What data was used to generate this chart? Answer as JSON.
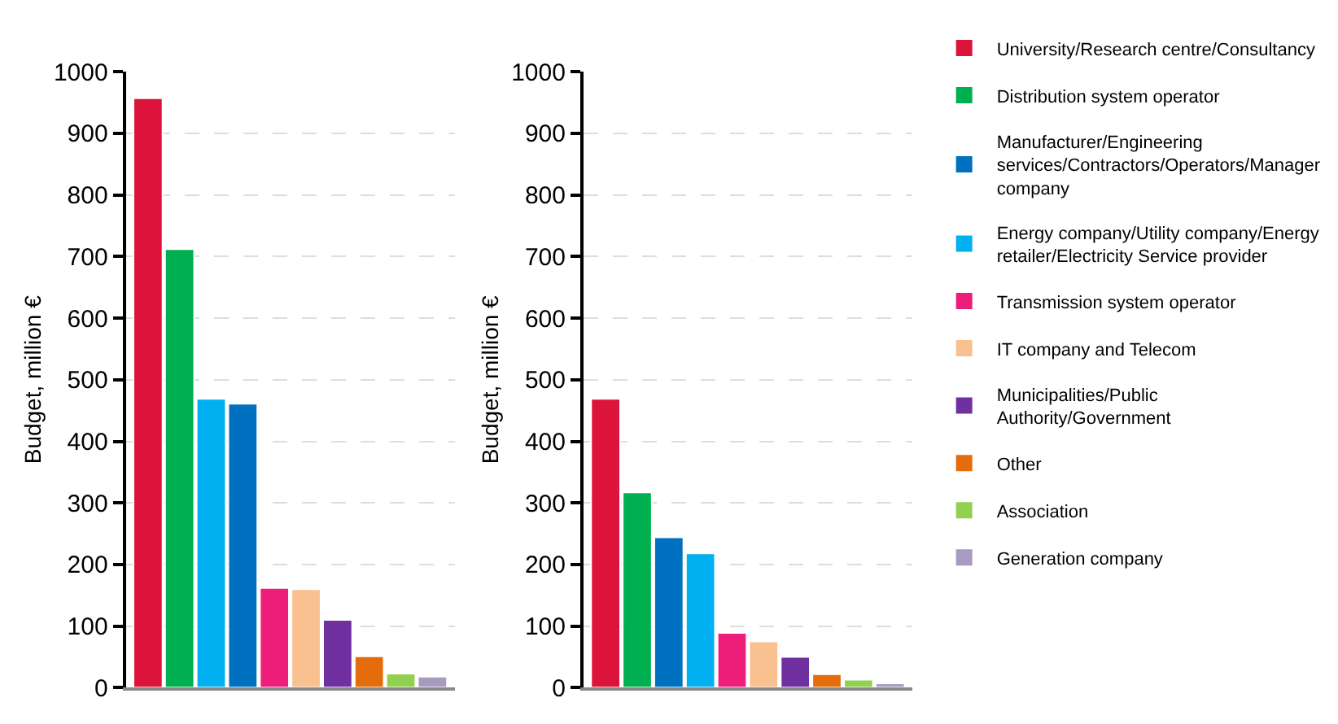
{
  "chart_data": [
    {
      "type": "bar",
      "ylabel": "Budget, million €",
      "categories": [
        null,
        null,
        null,
        null,
        null,
        null,
        null,
        null,
        null,
        null
      ],
      "ylim": [
        0,
        1000
      ],
      "yticks": [
        0,
        100,
        200,
        300,
        400,
        500,
        600,
        700,
        800,
        900,
        1000
      ],
      "grid": "y",
      "legend": false,
      "series": [
        {
          "color": "#dc143c",
          "values": [
            957,
            null,
            null,
            null,
            null,
            null,
            null,
            null,
            null,
            null
          ]
        },
        {
          "color": "#00b050",
          "values": [
            null,
            712,
            null,
            null,
            null,
            null,
            null,
            null,
            null,
            null
          ]
        },
        {
          "color": "#00b0f0",
          "values": [
            null,
            null,
            469,
            null,
            null,
            null,
            null,
            null,
            null,
            null
          ]
        },
        {
          "color": "#0070c0",
          "values": [
            null,
            null,
            null,
            461,
            null,
            null,
            null,
            null,
            null,
            null
          ]
        },
        {
          "color": "#ed1e79",
          "values": [
            null,
            null,
            null,
            null,
            162,
            null,
            null,
            null,
            null,
            null
          ]
        },
        {
          "color": "#f9c090",
          "values": [
            null,
            null,
            null,
            null,
            null,
            160,
            null,
            null,
            null,
            null
          ]
        },
        {
          "color": "#7030a0",
          "values": [
            null,
            null,
            null,
            null,
            null,
            null,
            110,
            null,
            null,
            null
          ]
        },
        {
          "color": "#e46c0a",
          "values": [
            null,
            null,
            null,
            null,
            null,
            null,
            null,
            51,
            null,
            null
          ]
        },
        {
          "color": "#92d050",
          "values": [
            null,
            null,
            null,
            null,
            null,
            null,
            null,
            null,
            23,
            null
          ]
        },
        {
          "color": "#a79cc0",
          "values": [
            null,
            null,
            null,
            null,
            null,
            null,
            null,
            null,
            null,
            18
          ]
        }
      ]
    },
    {
      "type": "bar",
      "ylabel": "Budget, million €",
      "categories": [
        null,
        null,
        null,
        null,
        null,
        null,
        null,
        null,
        null,
        null
      ],
      "ylim": [
        0,
        1000
      ],
      "yticks": [
        0,
        100,
        200,
        300,
        400,
        500,
        600,
        700,
        800,
        900,
        1000
      ],
      "grid": "y",
      "legend": "right",
      "series": [
        {
          "name": "University/Research centre/Consultancy",
          "color": "#dc143c",
          "values": [
            469,
            null,
            null,
            null,
            null,
            null,
            null,
            null,
            null,
            null
          ]
        },
        {
          "name": "Distribution system operator",
          "color": "#00b050",
          "values": [
            null,
            317,
            null,
            null,
            null,
            null,
            null,
            null,
            null,
            null
          ]
        },
        {
          "name": "Manufacturer/Engineering services/Contractors/Operators/Manager company",
          "color": "#0070c0",
          "values": [
            null,
            null,
            244,
            null,
            null,
            null,
            null,
            null,
            null,
            null
          ]
        },
        {
          "name": "Energy company/Utility company/Energy retailer/Electricity Service provider",
          "color": "#00b0f0",
          "values": [
            null,
            null,
            null,
            218,
            null,
            null,
            null,
            null,
            null,
            null
          ]
        },
        {
          "name": "Transmission system operator",
          "color": "#ed1e79",
          "values": [
            null,
            null,
            null,
            null,
            89,
            null,
            null,
            null,
            null,
            null
          ]
        },
        {
          "name": "IT company and Telecom",
          "color": "#f9c090",
          "values": [
            null,
            null,
            null,
            null,
            null,
            75,
            null,
            null,
            null,
            null
          ]
        },
        {
          "name": "Municipalities/Public Authority/Government",
          "color": "#7030a0",
          "values": [
            null,
            null,
            null,
            null,
            null,
            null,
            50,
            null,
            null,
            null
          ]
        },
        {
          "name": "Other",
          "color": "#e46c0a",
          "values": [
            null,
            null,
            null,
            null,
            null,
            null,
            null,
            22,
            null,
            null
          ]
        },
        {
          "name": "Association",
          "color": "#92d050",
          "values": [
            null,
            null,
            null,
            null,
            null,
            null,
            null,
            null,
            13,
            null
          ]
        },
        {
          "name": "Generation company",
          "color": "#a79cc0",
          "values": [
            null,
            null,
            null,
            null,
            null,
            null,
            null,
            null,
            null,
            7
          ]
        }
      ]
    }
  ]
}
